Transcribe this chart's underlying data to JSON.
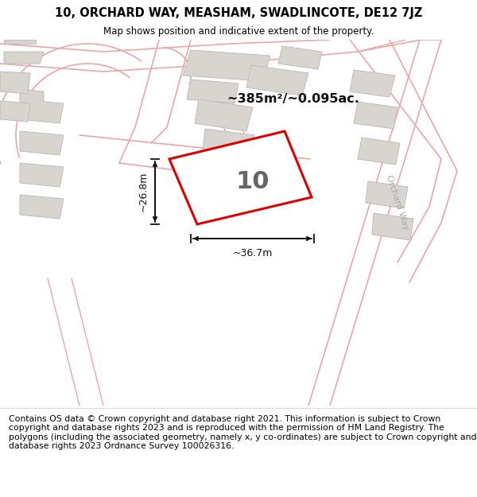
{
  "title_line1": "10, ORCHARD WAY, MEASHAM, SWADLINCOTE, DE12 7JZ",
  "title_line2": "Map shows position and indicative extent of the property.",
  "footer_text": "Contains OS data © Crown copyright and database right 2021. This information is subject to Crown copyright and database rights 2023 and is reproduced with the permission of HM Land Registry. The polygons (including the associated geometry, namely x, y co-ordinates) are subject to Crown copyright and database rights 2023 Ordnance Survey 100026316.",
  "area_text": "~385m²/~0.095ac.",
  "plot_number": "10",
  "dim_width": "~36.7m",
  "dim_height": "~26.8m",
  "road_label": "Orchard Way",
  "map_bg": "#f7f4f0",
  "plot_fill": "#ffffff",
  "plot_edge": "#dd0000",
  "building_fill": "#d8d5d0",
  "building_edge": "#c0bcb8",
  "road_line_color": "#e8a8a8",
  "road_fill": "#f0ece6",
  "title_fontsize": 10.5,
  "footer_fontsize": 7.8,
  "arrow_color": "#111111",
  "label_color": "#888888",
  "road_label_color": "#aaaaaa"
}
